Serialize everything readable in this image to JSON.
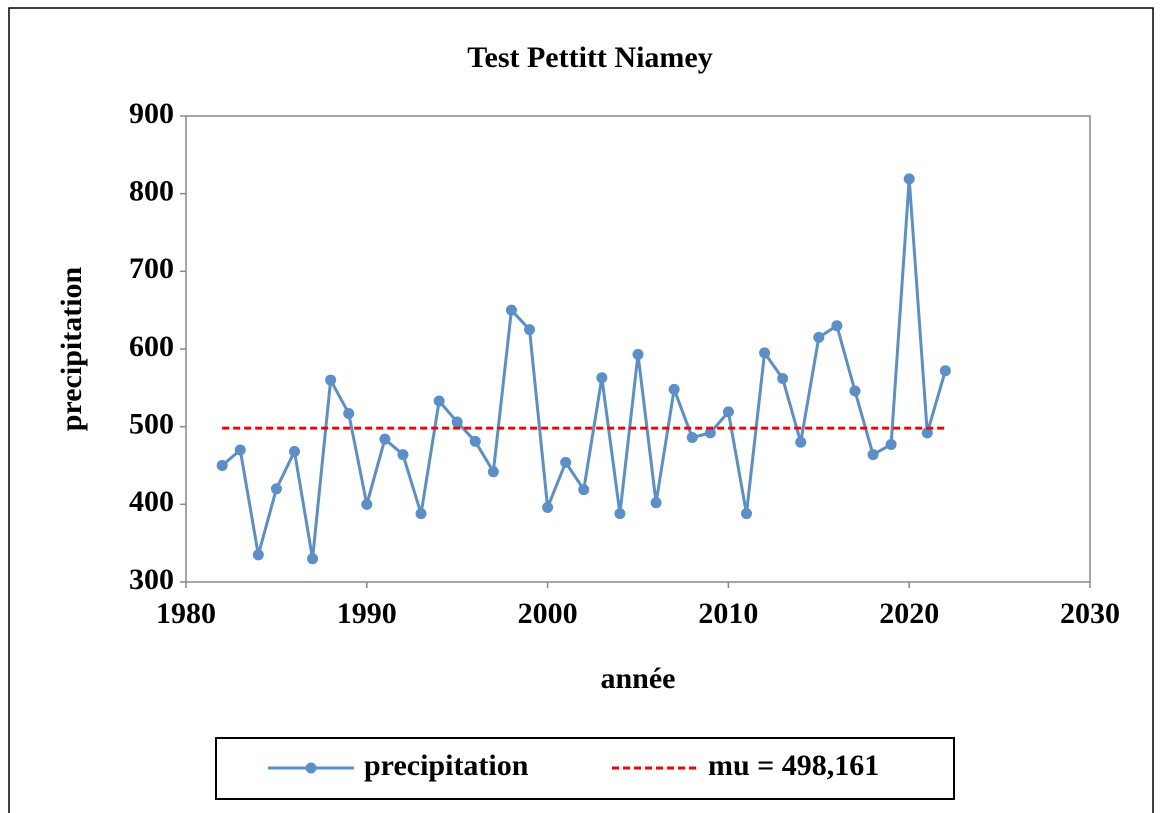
{
  "chart_data": {
    "type": "line",
    "title": "Test Pettitt Niamey",
    "x_label": "année",
    "y_label": "precipitation",
    "x": [
      1982,
      1983,
      1984,
      1985,
      1986,
      1987,
      1988,
      1989,
      1990,
      1991,
      1992,
      1993,
      1994,
      1995,
      1996,
      1997,
      1998,
      1999,
      2000,
      2001,
      2002,
      2003,
      2004,
      2005,
      2006,
      2007,
      2008,
      2009,
      2010,
      2011,
      2012,
      2013,
      2014,
      2015,
      2016,
      2017,
      2018,
      2019,
      2020,
      2021,
      2022
    ],
    "series": [
      {
        "name": "precipitation",
        "color": "#5b8fc9",
        "style": "solid-markers",
        "values": [
          450,
          470,
          335,
          420,
          468,
          330,
          560,
          517,
          400,
          484,
          464,
          388,
          533,
          506,
          481,
          442,
          650,
          625,
          396,
          454,
          419,
          563,
          388,
          593,
          402,
          548,
          486,
          492,
          519,
          388,
          595,
          562,
          480,
          615,
          630,
          546,
          464,
          477,
          819,
          492,
          572
        ]
      },
      {
        "name": "mu = 498,161",
        "color": "#ff0000",
        "style": "dashed",
        "values": [
          498.161,
          498.161,
          498.161,
          498.161,
          498.161,
          498.161,
          498.161,
          498.161,
          498.161,
          498.161,
          498.161,
          498.161,
          498.161,
          498.161,
          498.161,
          498.161,
          498.161,
          498.161,
          498.161,
          498.161,
          498.161,
          498.161,
          498.161,
          498.161,
          498.161,
          498.161,
          498.161,
          498.161,
          498.161,
          498.161,
          498.161,
          498.161,
          498.161,
          498.161,
          498.161,
          498.161,
          498.161,
          498.161,
          498.161,
          498.161,
          498.161
        ]
      }
    ],
    "xlim": [
      1980,
      2030
    ],
    "xticks": [
      1980,
      1990,
      2000,
      2010,
      2020,
      2030
    ],
    "ylim": [
      300,
      900
    ],
    "yticks": [
      300,
      400,
      500,
      600,
      700,
      800,
      900
    ],
    "grid": false,
    "legend": "bottom"
  }
}
